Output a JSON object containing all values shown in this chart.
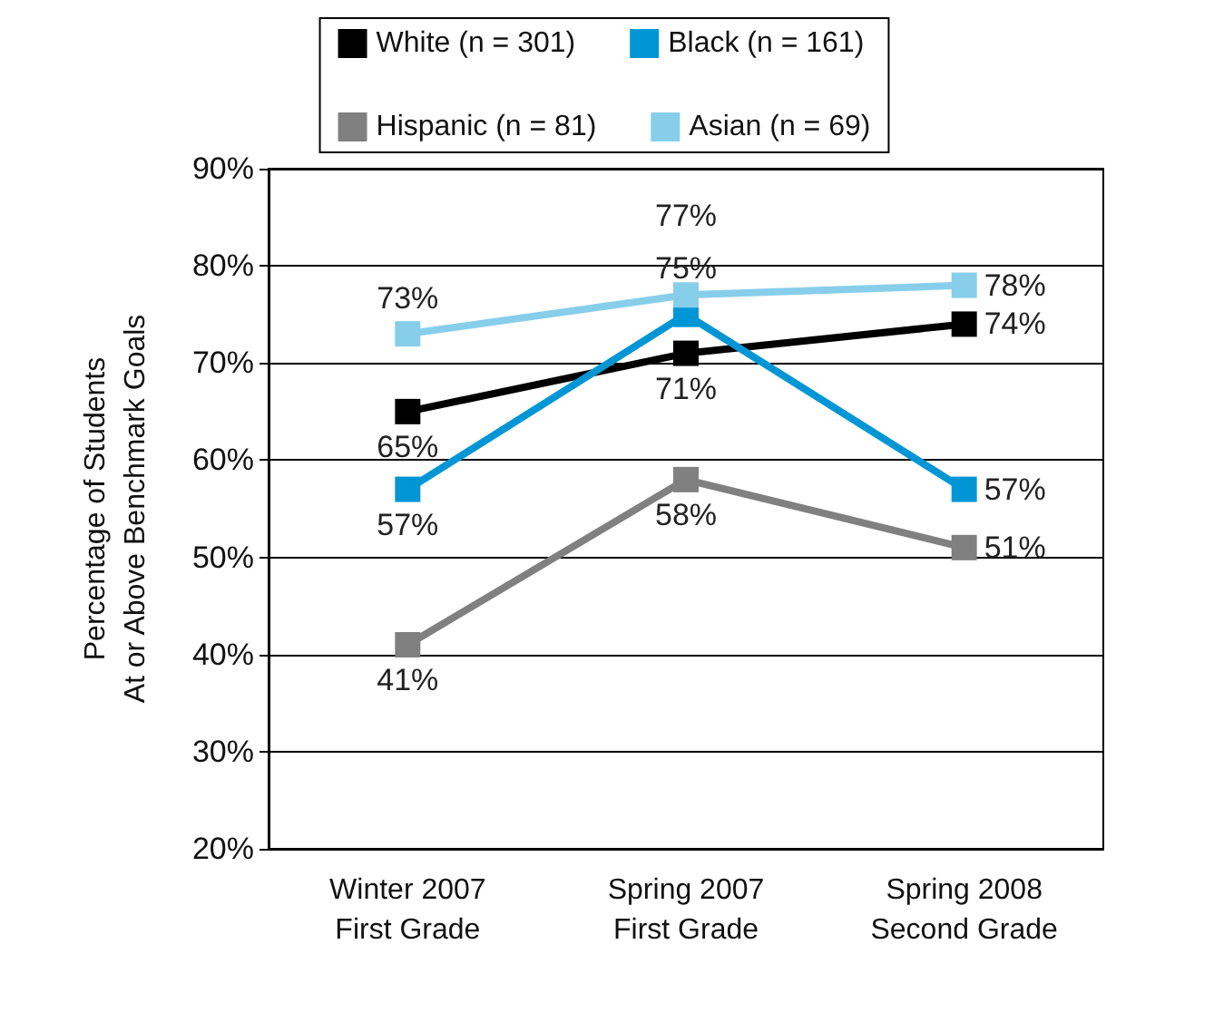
{
  "chart_data": {
    "type": "line",
    "ylabel": "Percentage of Students\nAt or Above Benchmark Goals",
    "categories": [
      "Winter 2007\nFirst Grade",
      "Spring 2007\nFirst Grade",
      "Spring 2008\nSecond Grade"
    ],
    "series": [
      {
        "name": "White (n = 301)",
        "color": "#000000",
        "values": [
          65,
          71,
          74
        ],
        "value_labels": [
          "65%",
          "71%",
          "74%"
        ]
      },
      {
        "name": "Black (n = 161)",
        "color": "#0096d6",
        "values": [
          57,
          75,
          57
        ],
        "value_labels": [
          "57%",
          "75%",
          "57%"
        ]
      },
      {
        "name": "Hispanic (n = 81)",
        "color": "#808080",
        "values": [
          41,
          58,
          51
        ],
        "value_labels": [
          "41%",
          "58%",
          "51%"
        ]
      },
      {
        "name": "Asian (n = 69)",
        "color": "#87ceeb",
        "values": [
          73,
          77,
          78
        ],
        "value_labels": [
          "73%",
          "77%",
          "78%"
        ]
      }
    ],
    "ylim": [
      20,
      90
    ],
    "yticks": [
      {
        "value": 20,
        "label": "20%"
      },
      {
        "value": 30,
        "label": "30%"
      },
      {
        "value": 40,
        "label": "40%"
      },
      {
        "value": 50,
        "label": "50%"
      },
      {
        "value": 60,
        "label": "60%"
      },
      {
        "value": 70,
        "label": "70%"
      },
      {
        "value": 80,
        "label": "80%"
      },
      {
        "value": 90,
        "label": "90%"
      }
    ],
    "grid": "y",
    "legend": "top",
    "marker": "square",
    "line_style": "solid"
  }
}
